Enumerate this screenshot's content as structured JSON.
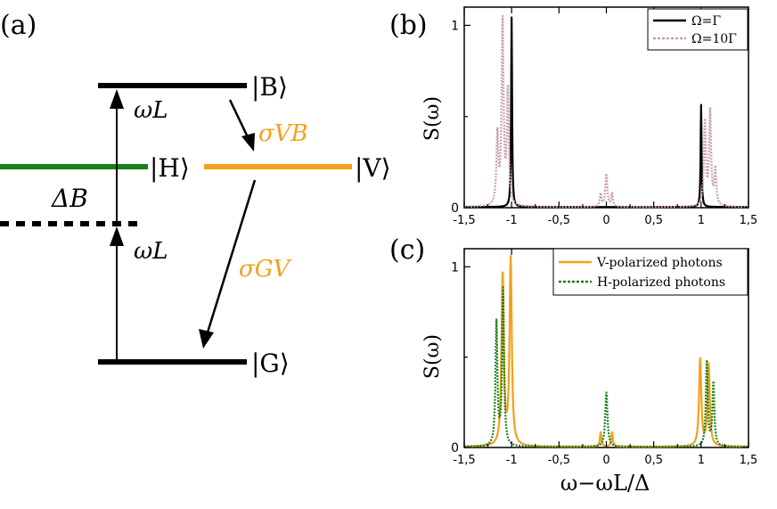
{
  "colors": {
    "black": "#000000",
    "green": "#1a7f1a",
    "orange": "#f5a01a",
    "pink": "#c8a0a8"
  },
  "diagram": {
    "panel_label": "(a)",
    "level_B": "|B⟩",
    "level_H": "|H⟩",
    "level_V": "|V⟩",
    "level_G": "|G⟩",
    "omega_upper": "ωL",
    "omega_lower": "ωL",
    "delta": "ΔB",
    "sigma_VB": "σVB",
    "sigma_GV": "σGV"
  },
  "chart_data": [
    {
      "panel_label": "(b)",
      "type": "line",
      "ylabel": "S(ω)",
      "xlabel": "",
      "xlim": [
        -1.5,
        1.5
      ],
      "ylim": [
        0,
        1.1
      ],
      "xticks": [
        "-1,5",
        "-1",
        "-0,5",
        "0",
        "0,5",
        "1",
        "1,5"
      ],
      "xtick_values": [
        -1.5,
        -1,
        -0.5,
        0,
        0.5,
        1,
        1.5
      ],
      "yticks": [
        "0",
        "1"
      ],
      "ytick_values": [
        0,
        1
      ],
      "legend": "top-right",
      "series": [
        {
          "name": "Ω=Γ",
          "color": "#000000",
          "peaks": [
            {
              "x": -1.0,
              "height": 1.04,
              "width": 0.006
            },
            {
              "x": 1.0,
              "height": 0.56,
              "width": 0.006
            }
          ]
        },
        {
          "name": "Ω=10Γ",
          "color": "#c8a0a8",
          "peaks": [
            {
              "x": -1.15,
              "height": 0.38,
              "width": 0.012
            },
            {
              "x": -1.095,
              "height": 1.02,
              "width": 0.012
            },
            {
              "x": -1.04,
              "height": 0.62,
              "width": 0.012
            },
            {
              "x": -0.06,
              "height": 0.07,
              "width": 0.01
            },
            {
              "x": 0.0,
              "height": 0.18,
              "width": 0.012
            },
            {
              "x": 0.06,
              "height": 0.07,
              "width": 0.01
            },
            {
              "x": 1.04,
              "height": 0.46,
              "width": 0.012
            },
            {
              "x": 1.095,
              "height": 0.52,
              "width": 0.012
            },
            {
              "x": 1.15,
              "height": 0.2,
              "width": 0.012
            }
          ]
        }
      ]
    },
    {
      "panel_label": "(c)",
      "type": "line",
      "ylabel": "S(ω)",
      "xlabel": "ω−ωL/Δ",
      "xlim": [
        -1.5,
        1.5
      ],
      "ylim": [
        0,
        1.1
      ],
      "xticks": [
        "-1,5",
        "-1",
        "-0,5",
        "0",
        "0,5",
        "1",
        "1,5"
      ],
      "xtick_values": [
        -1.5,
        -1,
        -0.5,
        0,
        0.5,
        1,
        1.5
      ],
      "yticks": [
        "0",
        "1"
      ],
      "ytick_values": [
        0,
        1
      ],
      "legend": "top-right",
      "series": [
        {
          "name": "V-polarized photons",
          "color": "#f5a01a",
          "peaks": [
            {
              "x": -1.095,
              "height": 0.95,
              "width": 0.014
            },
            {
              "x": -1.01,
              "height": 1.03,
              "width": 0.014
            },
            {
              "x": -0.06,
              "height": 0.08,
              "width": 0.01
            },
            {
              "x": 0.06,
              "height": 0.08,
              "width": 0.01
            },
            {
              "x": 0.99,
              "height": 0.48,
              "width": 0.014
            },
            {
              "x": 1.08,
              "height": 0.45,
              "width": 0.014
            }
          ]
        },
        {
          "name": "H-polarized photons",
          "color": "#1a7f1a",
          "peaks": [
            {
              "x": -1.16,
              "height": 0.68,
              "width": 0.012
            },
            {
              "x": -1.09,
              "height": 0.87,
              "width": 0.012
            },
            {
              "x": 0.0,
              "height": 0.3,
              "width": 0.014
            },
            {
              "x": 1.06,
              "height": 0.47,
              "width": 0.012
            },
            {
              "x": 1.13,
              "height": 0.35,
              "width": 0.012
            }
          ]
        }
      ]
    }
  ]
}
